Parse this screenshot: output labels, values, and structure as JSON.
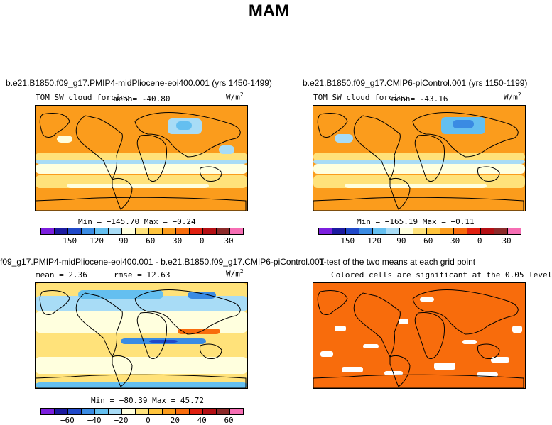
{
  "figure_title": "MAM",
  "colors": [
    "#7c1fde",
    "#1c1aa0",
    "#1f48c9",
    "#3a8be3",
    "#64bff0",
    "#a8dcf6",
    "#ffffde",
    "#ffe27a",
    "#ffc43c",
    "#fb9c1c",
    "#f86c0c",
    "#e02010",
    "#b40f14",
    "#8c2a2a",
    "#f66eb4"
  ],
  "chart_data": [
    {
      "type": "heatmap",
      "title": "b.e21.B1850.f09_g17.PMIP4-midPliocene-eoi400.001 (yrs 1450-1499)",
      "variable": "TOM SW cloud forcing",
      "mean_text": "mean= -40.80",
      "units": "W/m",
      "units_sup": "2",
      "min_max_text": "Min = −145.70 Max = −0.24",
      "colorbar_ticks": [
        "−150",
        "−120",
        "−90",
        "−60",
        "−30",
        "0",
        "30"
      ],
      "min": -145.7,
      "max": -0.24,
      "mean": -40.8
    },
    {
      "type": "heatmap",
      "title": "b.e21.B1850.f09_g17.CMIP6-piControl.001 (yrs 1150-1199)",
      "variable": "TOM SW cloud forcing",
      "mean_text": "mean= -43.16",
      "units": "W/m",
      "units_sup": "2",
      "min_max_text": "Min = −165.19 Max = −0.11",
      "colorbar_ticks": [
        "−150",
        "−120",
        "−90",
        "−60",
        "−30",
        "0",
        "30"
      ],
      "min": -165.19,
      "max": -0.11,
      "mean": -43.16
    },
    {
      "type": "heatmap",
      "title": "f09_g17.PMIP4-midPliocene-eoi400.001 - b.e21.B1850.f09_g17.CMIP6-piControl.001",
      "mean_text": "mean =    2.36",
      "rmse_text": "rmse =  12.63",
      "units": "W/m",
      "units_sup": "2",
      "min_max_text": "Min = −80.39 Max =  45.72",
      "colorbar_ticks": [
        "−60",
        "−40",
        "−20",
        "0",
        "20",
        "40",
        "60"
      ],
      "min": -80.39,
      "max": 45.72,
      "mean": 2.36,
      "rmse": 12.63
    },
    {
      "type": "heatmap",
      "title": "T-test of the two means at each grid point",
      "subtitle": "Colored cells are significant at the 0.05 level"
    }
  ]
}
